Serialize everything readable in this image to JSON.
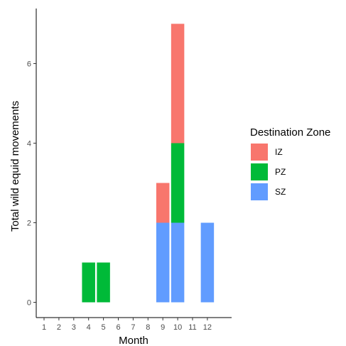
{
  "chart_data": {
    "type": "bar",
    "stacked": true,
    "title": "",
    "xlabel": "Month",
    "ylabel": "Total wild equid movements",
    "categories": [
      "1",
      "2",
      "3",
      "4",
      "5",
      "6",
      "7",
      "8",
      "9",
      "10",
      "11",
      "12"
    ],
    "series": [
      {
        "name": "SZ",
        "color": "#619CFF",
        "values": [
          0,
          0,
          0,
          0,
          0,
          0,
          0,
          0,
          2,
          2,
          0,
          2
        ]
      },
      {
        "name": "PZ",
        "color": "#00BA38",
        "values": [
          0,
          0,
          0,
          1,
          1,
          0,
          0,
          0,
          0,
          2,
          0,
          0
        ]
      },
      {
        "name": "IZ",
        "color": "#F8766D",
        "values": [
          0,
          0,
          0,
          0,
          0,
          0,
          0,
          0,
          1,
          3,
          0,
          0
        ]
      }
    ],
    "ylim": [
      0,
      7.2
    ],
    "yticks": [
      0,
      2,
      4,
      6
    ],
    "grid": false,
    "legend": {
      "title": "Destination Zone",
      "position": "right",
      "entries": [
        {
          "label": "IZ",
          "color": "#F8766D"
        },
        {
          "label": "PZ",
          "color": "#00BA38"
        },
        {
          "label": "SZ",
          "color": "#619CFF"
        }
      ]
    }
  }
}
